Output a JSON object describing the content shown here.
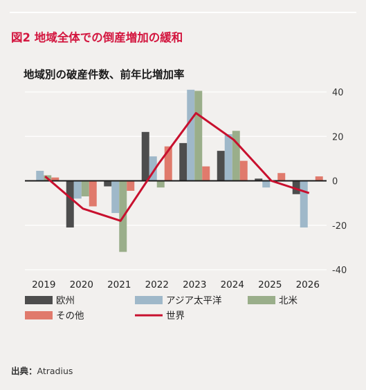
{
  "figure_title": "図2 地域全体での倒産増加の緩和",
  "source_label": "出典：",
  "source_value": "Atradius",
  "chart_data": {
    "type": "bar",
    "title": "地域別の破産件数、前年比増加率",
    "categories": [
      "2019",
      "2020",
      "2021",
      "2022",
      "2023",
      "2024",
      "2025",
      "2026"
    ],
    "ylim": [
      -40,
      40
    ],
    "yticks": [
      -40,
      -20,
      0,
      20,
      40
    ],
    "y_axis_side": "right",
    "grid": true,
    "series": [
      {
        "name": "欧州",
        "type": "bar",
        "color": "#4d4d4d",
        "values": [
          0,
          -21,
          -2.5,
          22,
          17,
          13.5,
          1,
          -6
        ]
      },
      {
        "name": "アジア太平洋",
        "type": "bar",
        "color": "#9fb8c9",
        "values": [
          4.5,
          -8,
          -14.5,
          11,
          41,
          21,
          -3,
          -21
        ]
      },
      {
        "name": "北米",
        "type": "bar",
        "color": "#9aae8a",
        "values": [
          2.5,
          -7,
          -32,
          -3,
          40.5,
          22.5,
          0,
          0
        ]
      },
      {
        "name": "その他",
        "type": "bar",
        "color": "#e07a6c",
        "values": [
          1.5,
          -11.5,
          -4.5,
          15.5,
          6.5,
          9,
          3.5,
          2
        ]
      },
      {
        "name": "世界",
        "type": "line",
        "color": "#c8102e",
        "values": [
          2,
          -12.5,
          -18,
          7.5,
          30.5,
          18.5,
          0,
          -5.5
        ]
      }
    ],
    "legend_position": "bottom"
  }
}
